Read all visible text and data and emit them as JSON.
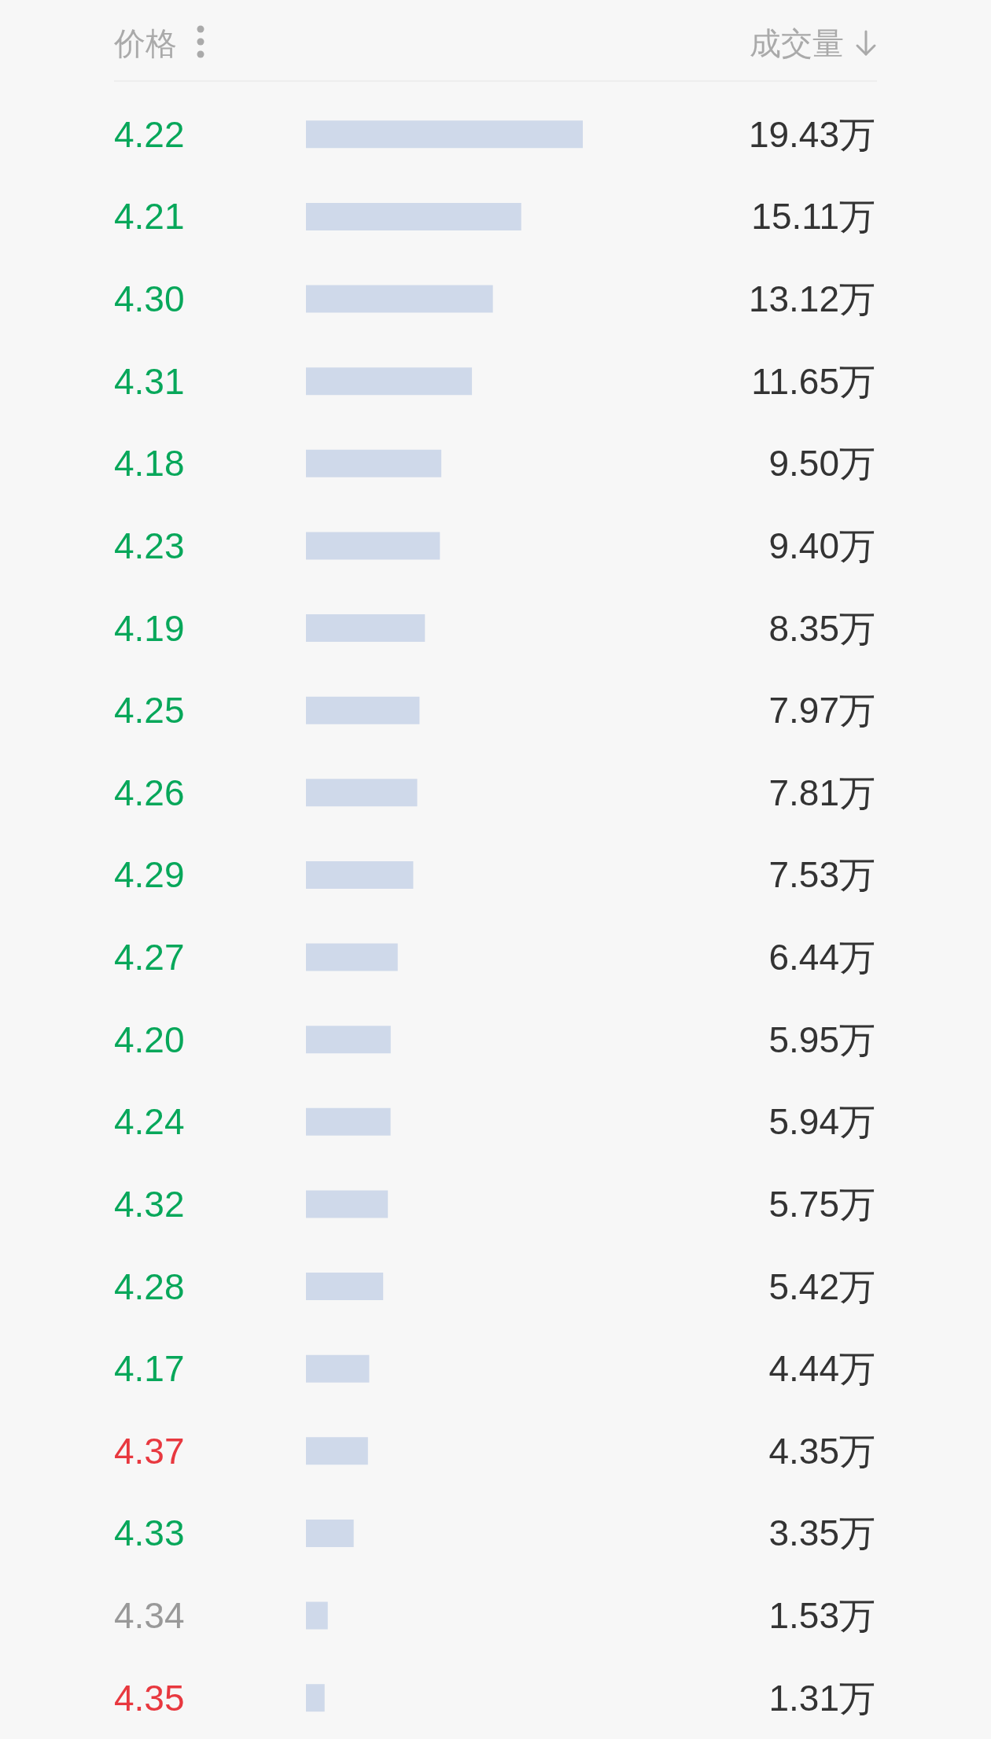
{
  "chart_data": {
    "type": "bar",
    "orientation": "horizontal",
    "ylabel": "价格",
    "annotations": [
      "成交量"
    ],
    "categories": [
      "4.22",
      "4.21",
      "4.30",
      "4.31",
      "4.18",
      "4.23",
      "4.19",
      "4.25",
      "4.26",
      "4.29",
      "4.27",
      "4.20",
      "4.24",
      "4.32",
      "4.28",
      "4.17",
      "4.37",
      "4.33",
      "4.34",
      "4.35"
    ],
    "values": [
      19.43,
      15.11,
      13.12,
      11.65,
      9.5,
      9.4,
      8.35,
      7.97,
      7.81,
      7.53,
      6.44,
      5.95,
      5.94,
      5.75,
      5.42,
      4.44,
      4.35,
      3.35,
      1.53,
      1.31
    ],
    "value_labels": [
      "19.43万",
      "15.11万",
      "13.12万",
      "11.65万",
      "9.50万",
      "9.40万",
      "8.35万",
      "7.97万",
      "7.81万",
      "7.53万",
      "6.44万",
      "5.95万",
      "5.94万",
      "5.75万",
      "5.42万",
      "4.44万",
      "4.35万",
      "3.35万",
      "1.53万",
      "1.31万"
    ],
    "color": "#cfd9ea",
    "tick_labels": "y"
  }
}
